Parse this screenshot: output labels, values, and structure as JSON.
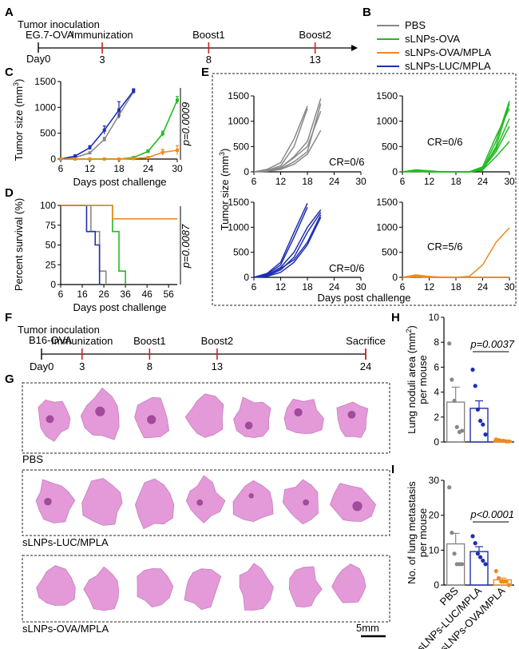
{
  "colors": {
    "PBS": "#888888",
    "sLNPs-OVA": "#22bb22",
    "sLNPs-OVA/MPLA": "#f08a1c",
    "sLNPs-LUC/MPLA": "#1f2fb0",
    "red_tick": "#d42020",
    "tissue": "#e49ad8",
    "tissue_dark": "#a24a9c"
  },
  "panelA": {
    "letter": "A",
    "line1": "Tumor inoculation",
    "line2": "EG.7-OVA",
    "day0": "Day0",
    "events": [
      {
        "label": "Immunization",
        "day": "3"
      },
      {
        "label": "Boost1",
        "day": "8"
      },
      {
        "label": "Boost2",
        "day": "13"
      }
    ]
  },
  "panelB": {
    "letter": "B",
    "legend": [
      "PBS",
      "sLNPs-OVA",
      "sLNPs-OVA/MPLA",
      "sLNPs-LUC/MPLA"
    ]
  },
  "chart_data": [
    {
      "panel": "C",
      "type": "line",
      "xlabel": "Days post challenge",
      "ylabel": "Tumor size (mm³)",
      "xlim": [
        6,
        30
      ],
      "ylim": [
        0,
        1500
      ],
      "xticks": [
        "6",
        "12",
        "18",
        "24",
        "30"
      ],
      "yticks": [
        "0",
        "500",
        "1000",
        "1500"
      ],
      "pvalue": "p=0.0009",
      "series": [
        {
          "name": "PBS",
          "x": [
            6,
            9,
            12,
            15,
            18,
            21
          ],
          "y": [
            0,
            30,
            120,
            380,
            850,
            1300
          ]
        },
        {
          "name": "sLNPs-LUC/MPLA",
          "x": [
            6,
            9,
            12,
            15,
            18,
            21
          ],
          "y": [
            0,
            60,
            220,
            560,
            950,
            1320
          ]
        },
        {
          "name": "sLNPs-OVA",
          "x": [
            6,
            9,
            12,
            15,
            18,
            21,
            24,
            27,
            30
          ],
          "y": [
            0,
            0,
            0,
            0,
            0,
            30,
            150,
            490,
            1140
          ]
        },
        {
          "name": "sLNPs-OVA/MPLA",
          "x": [
            6,
            9,
            12,
            15,
            18,
            21,
            24,
            27,
            30
          ],
          "y": [
            0,
            0,
            0,
            0,
            0,
            10,
            30,
            130,
            170
          ]
        }
      ]
    },
    {
      "panel": "D",
      "type": "line",
      "xlabel": "Days post challenge",
      "ylabel": "Percent survival (%)",
      "xlim": [
        6,
        60
      ],
      "ylim": [
        0,
        100
      ],
      "xticks": [
        "6",
        "16",
        "26",
        "36",
        "46",
        "56"
      ],
      "yticks": [
        "0",
        "25",
        "50",
        "75",
        "100"
      ],
      "pvalue": "p=0.0087",
      "series": [
        {
          "name": "PBS",
          "x": [
            6,
            20,
            20,
            24,
            24,
            27,
            27
          ],
          "y": [
            100,
            100,
            67,
            67,
            17,
            17,
            0
          ]
        },
        {
          "name": "sLNPs-LUC/MPLA",
          "x": [
            6,
            18,
            18,
            22,
            22,
            24,
            24
          ],
          "y": [
            100,
            100,
            67,
            67,
            50,
            50,
            0
          ]
        },
        {
          "name": "sLNPs-OVA",
          "x": [
            6,
            30,
            30,
            33,
            33,
            36,
            36
          ],
          "y": [
            100,
            100,
            67,
            67,
            17,
            17,
            0
          ]
        },
        {
          "name": "sLNPs-OVA/MPLA",
          "x": [
            6,
            30,
            30,
            60
          ],
          "y": [
            100,
            100,
            83,
            83
          ]
        }
      ]
    },
    {
      "panel": "E",
      "type": "line",
      "xlabel": "Days post challenge",
      "ylabel": "Tumor size (mm³)",
      "xlim": [
        6,
        30
      ],
      "ylim": [
        0,
        1500
      ],
      "xticks": [
        "6",
        "12",
        "18",
        "24",
        "30"
      ],
      "yticks": [
        "0",
        "500",
        "1000",
        "1500"
      ],
      "subplots": [
        {
          "group": "PBS",
          "cr": "CR=0/6",
          "lines": [
            [
              [
                6,
                0
              ],
              [
                9,
                30
              ],
              [
                12,
                120
              ],
              [
                15,
                500
              ],
              [
                18,
                1250
              ]
            ],
            [
              [
                6,
                0
              ],
              [
                9,
                50
              ],
              [
                12,
                180
              ],
              [
                15,
                650
              ],
              [
                18,
                1300
              ]
            ],
            [
              [
                6,
                0
              ],
              [
                9,
                20
              ],
              [
                12,
                80
              ],
              [
                15,
                300
              ],
              [
                18,
                600
              ],
              [
                21,
                1450
              ]
            ],
            [
              [
                6,
                0
              ],
              [
                9,
                15
              ],
              [
                12,
                60
              ],
              [
                15,
                200
              ],
              [
                18,
                400
              ],
              [
                21,
                1350
              ]
            ],
            [
              [
                6,
                0
              ],
              [
                9,
                25
              ],
              [
                12,
                90
              ],
              [
                15,
                280
              ],
              [
                18,
                500
              ],
              [
                21,
                1200
              ]
            ],
            [
              [
                6,
                0
              ],
              [
                9,
                10
              ],
              [
                12,
                50
              ],
              [
                15,
                150
              ],
              [
                18,
                350
              ],
              [
                21,
                820
              ]
            ]
          ]
        },
        {
          "group": "sLNPs-OVA",
          "cr": "CR=0/6",
          "lines": [
            [
              [
                6,
                0
              ],
              [
                9,
                40
              ],
              [
                12,
                20
              ],
              [
                15,
                0
              ],
              [
                18,
                0
              ],
              [
                21,
                0
              ],
              [
                24,
                50
              ],
              [
                27,
                600
              ],
              [
                30,
                1400
              ]
            ],
            [
              [
                6,
                0
              ],
              [
                9,
                20
              ],
              [
                12,
                10
              ],
              [
                15,
                0
              ],
              [
                18,
                0
              ],
              [
                21,
                0
              ],
              [
                24,
                30
              ],
              [
                27,
                500
              ],
              [
                30,
                1350
              ]
            ],
            [
              [
                6,
                0
              ],
              [
                9,
                10
              ],
              [
                12,
                0
              ],
              [
                15,
                0
              ],
              [
                18,
                0
              ],
              [
                21,
                0
              ],
              [
                24,
                100
              ],
              [
                27,
                700
              ],
              [
                30,
                1250
              ]
            ],
            [
              [
                6,
                0
              ],
              [
                9,
                30
              ],
              [
                12,
                10
              ],
              [
                15,
                0
              ],
              [
                18,
                0
              ],
              [
                21,
                0
              ],
              [
                24,
                80
              ],
              [
                27,
                450
              ],
              [
                30,
                1050
              ]
            ],
            [
              [
                6,
                0
              ],
              [
                9,
                20
              ],
              [
                12,
                0
              ],
              [
                15,
                0
              ],
              [
                18,
                0
              ],
              [
                21,
                0
              ],
              [
                24,
                60
              ],
              [
                27,
                400
              ],
              [
                30,
                900
              ]
            ],
            [
              [
                6,
                0
              ],
              [
                9,
                10
              ],
              [
                12,
                0
              ],
              [
                15,
                0
              ],
              [
                18,
                0
              ],
              [
                21,
                0
              ],
              [
                24,
                40
              ],
              [
                27,
                300
              ],
              [
                30,
                600
              ]
            ]
          ]
        },
        {
          "group": "sLNPs-LUC/MPLA",
          "cr": "CR=0/6",
          "lines": [
            [
              [
                6,
                0
              ],
              [
                9,
                80
              ],
              [
                12,
                300
              ],
              [
                15,
                900
              ],
              [
                18,
                1480
              ]
            ],
            [
              [
                6,
                0
              ],
              [
                9,
                60
              ],
              [
                12,
                250
              ],
              [
                15,
                800
              ],
              [
                18,
                1400
              ]
            ],
            [
              [
                6,
                0
              ],
              [
                9,
                40
              ],
              [
                12,
                200
              ],
              [
                15,
                500
              ],
              [
                18,
                1000
              ],
              [
                21,
                1350
              ]
            ],
            [
              [
                6,
                0
              ],
              [
                9,
                30
              ],
              [
                12,
                150
              ],
              [
                15,
                400
              ],
              [
                18,
                900
              ],
              [
                21,
                1300
              ]
            ],
            [
              [
                6,
                0
              ],
              [
                9,
                50
              ],
              [
                12,
                180
              ],
              [
                15,
                350
              ],
              [
                18,
                700
              ],
              [
                21,
                1250
              ]
            ],
            [
              [
                6,
                0
              ],
              [
                9,
                20
              ],
              [
                12,
                100
              ],
              [
                15,
                300
              ],
              [
                18,
                650
              ],
              [
                21,
                1200
              ]
            ]
          ]
        },
        {
          "group": "sLNPs-OVA/MPLA",
          "cr": "CR=5/6",
          "lines": [
            [
              [
                6,
                0
              ],
              [
                9,
                40
              ],
              [
                12,
                20
              ],
              [
                15,
                0
              ],
              [
                18,
                0
              ],
              [
                21,
                20
              ],
              [
                24,
                250
              ],
              [
                27,
                700
              ],
              [
                30,
                990
              ]
            ],
            [
              [
                6,
                0
              ],
              [
                9,
                30
              ],
              [
                12,
                10
              ],
              [
                15,
                0
              ],
              [
                30,
                0
              ]
            ],
            [
              [
                6,
                0
              ],
              [
                9,
                50
              ],
              [
                12,
                15
              ],
              [
                15,
                0
              ],
              [
                30,
                0
              ]
            ],
            [
              [
                6,
                0
              ],
              [
                9,
                20
              ],
              [
                12,
                0
              ],
              [
                30,
                0
              ]
            ],
            [
              [
                6,
                0
              ],
              [
                9,
                35
              ],
              [
                12,
                5
              ],
              [
                30,
                0
              ]
            ],
            [
              [
                6,
                0
              ],
              [
                9,
                10
              ],
              [
                12,
                0
              ],
              [
                30,
                0
              ]
            ]
          ]
        }
      ]
    },
    {
      "panel": "H",
      "type": "bar",
      "categories": [
        "PBS",
        "sLNPs-LUC/MPLA",
        "sLNPs-OVA/MPLA"
      ],
      "values": [
        3.2,
        2.7,
        0.1
      ],
      "errors": [
        1.2,
        0.6,
        0.05
      ],
      "ylabel": "Lung noduli area (mm²) per mouse",
      "ylim": [
        0,
        10
      ],
      "yticks": [
        "0",
        "2",
        "4",
        "6",
        "8",
        "10"
      ],
      "pvalue": "p=0.0037",
      "points": [
        [
          7.9,
          5.0,
          3.3,
          1.2,
          0.8,
          0.9
        ],
        [
          5.8,
          4.5,
          2.6,
          1.7,
          1.4,
          0.6
        ],
        [
          0.2,
          0.15,
          0.1,
          0.1,
          0.05,
          0.05
        ]
      ]
    },
    {
      "panel": "I",
      "type": "bar",
      "categories": [
        "PBS",
        "sLNPs-LUC/MPLA",
        "sLNPs-OVA/MPLA"
      ],
      "values": [
        11.8,
        9.6,
        1.5
      ],
      "errors": [
        3.0,
        1.4,
        0.5
      ],
      "ylabel": "No. of lung metastasis per mouse",
      "ylim": [
        0,
        30
      ],
      "yticks": [
        "0",
        "10",
        "20",
        "30"
      ],
      "pvalue": "p<0.0001",
      "points": [
        [
          28,
          15,
          9,
          6,
          6,
          6
        ],
        [
          14,
          12,
          9,
          8,
          7,
          6
        ],
        [
          4,
          2,
          1,
          1,
          1,
          0
        ]
      ]
    }
  ],
  "panelF": {
    "letter": "F",
    "line1": "Tumor inoculation",
    "line2": "B16-OVA",
    "day0": "Day0",
    "events": [
      {
        "label": "Immunization",
        "day": "3"
      },
      {
        "label": "Boost1",
        "day": "8"
      },
      {
        "label": "Boost2",
        "day": "13"
      },
      {
        "label": "Sacrifice",
        "day": "24"
      }
    ]
  },
  "panelG": {
    "letter": "G",
    "rows": [
      "PBS",
      "sLNPs-LUC/MPLA",
      "sLNPs-OVA/MPLA"
    ],
    "scale": "5mm"
  },
  "letters": {
    "C": "C",
    "D": "D",
    "E": "E",
    "H": "H",
    "I": "I"
  }
}
